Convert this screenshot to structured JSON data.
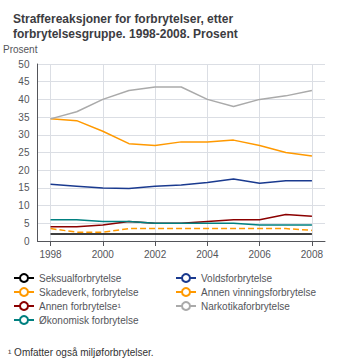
{
  "chart_data": {
    "type": "line",
    "title": "Straffereaksjoner for forbrytelser, etter forbrytelsesgruppe. 1998-2008. Prosent",
    "ylabel": "Prosent",
    "footnote": "¹ Omfatter også miljøforbrytelser.",
    "x": [
      1998,
      1999,
      2000,
      2001,
      2002,
      2003,
      2004,
      2005,
      2006,
      2007,
      2008
    ],
    "series": [
      {
        "name": "Seksualforbrytelse",
        "color": "#000000",
        "line_style": "solid",
        "values": [
          2.0,
          2.0,
          2.0,
          2.0,
          2.0,
          2.0,
          2.0,
          2.0,
          2.0,
          2.0,
          2.0
        ]
      },
      {
        "name": "Voldsforbrytelse",
        "color": "#1a3a8f",
        "line_style": "solid",
        "values": [
          16.0,
          15.5,
          15.0,
          14.8,
          15.5,
          15.8,
          16.5,
          17.5,
          16.3,
          17.0,
          17.0
        ]
      },
      {
        "name": "Skadeverk, forbrytelse",
        "color": "#ff9900",
        "line_style": "dashed",
        "values": [
          3.5,
          2.5,
          2.5,
          3.5,
          3.5,
          3.5,
          3.5,
          3.5,
          3.5,
          3.5,
          3.0
        ]
      },
      {
        "name": "Annen vinningsforbrytelse",
        "color": "#ff9900",
        "line_style": "solid",
        "values": [
          34.5,
          34.0,
          31.0,
          27.5,
          27.0,
          28.0,
          28.0,
          28.5,
          27.0,
          25.0,
          24.0
        ]
      },
      {
        "name": "Annen forbrytelse¹",
        "color": "#8b0000",
        "line_style": "solid",
        "values": [
          4.0,
          4.0,
          4.5,
          5.5,
          5.0,
          5.0,
          5.5,
          6.0,
          6.0,
          7.5,
          7.0
        ]
      },
      {
        "name": "Narkotikaforbrytelse",
        "color": "#aaaaaa",
        "line_style": "solid",
        "values": [
          34.5,
          36.5,
          40.0,
          42.5,
          43.5,
          43.5,
          40.0,
          38.0,
          40.0,
          41.0,
          42.5
        ]
      },
      {
        "name": "Økonomisk forbrytelse",
        "color": "#008080",
        "line_style": "solid",
        "values": [
          6.0,
          6.0,
          5.5,
          5.5,
          5.0,
          5.0,
          5.0,
          5.0,
          4.5,
          4.5,
          4.5
        ]
      }
    ],
    "xlim": [
      1997.5,
      2008.5
    ],
    "xticks": [
      1998,
      2000,
      2002,
      2004,
      2006,
      2008
    ],
    "ylim": [
      0,
      50
    ],
    "yticks": [
      0,
      5,
      10,
      15,
      20,
      25,
      30,
      35,
      40,
      45,
      50
    ],
    "grid": true,
    "legend": "bottom"
  }
}
